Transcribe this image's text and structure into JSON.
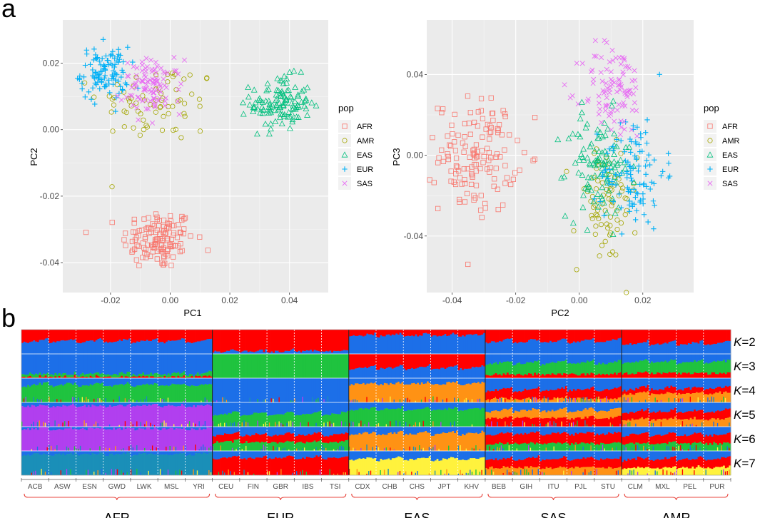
{
  "panel_labels": {
    "a": "a",
    "b": "b"
  },
  "chart_data": [
    {
      "type": "scatter",
      "xlabel": "PC1",
      "ylabel": "PC2",
      "xlim": [
        -0.036,
        0.053
      ],
      "ylim": [
        -0.049,
        0.033
      ],
      "xticks": [
        -0.02,
        0.0,
        0.02,
        0.04
      ],
      "xtick_labels": [
        "-0.02",
        "0.00",
        "0.02",
        "0.04"
      ],
      "yticks": [
        -0.04,
        -0.02,
        0.0,
        0.02
      ],
      "ytick_labels": [
        "-0.04",
        "-0.02",
        "0.00",
        "0.02"
      ],
      "grid": true,
      "legend": {
        "title": "pop",
        "placement": "right"
      },
      "series": [
        {
          "name": "AFR",
          "color": "#F8766D",
          "marker": "square",
          "n": 130,
          "center": [
            -0.004,
            -0.033
          ],
          "spread": [
            0.006,
            0.0045
          ]
        },
        {
          "name": "AMR",
          "color": "#A3A500",
          "marker": "circle",
          "n": 70,
          "center": [
            -0.004,
            0.008
          ],
          "spread": [
            0.01,
            0.006
          ]
        },
        {
          "name": "EAS",
          "color": "#00BF7D",
          "marker": "triangle",
          "n": 120,
          "center": [
            0.037,
            0.008
          ],
          "spread": [
            0.005,
            0.004
          ]
        },
        {
          "name": "EUR",
          "color": "#00B0F6",
          "marker": "plus",
          "n": 110,
          "center": [
            -0.022,
            0.017
          ],
          "spread": [
            0.004,
            0.004
          ]
        },
        {
          "name": "SAS",
          "color": "#E76BF3",
          "marker": "cross",
          "n": 100,
          "center": [
            -0.006,
            0.013
          ],
          "spread": [
            0.005,
            0.004
          ]
        }
      ]
    },
    {
      "type": "scatter",
      "xlabel": "PC2",
      "ylabel": "PC3",
      "xlim": [
        -0.048,
        0.036
      ],
      "ylim": [
        -0.068,
        0.067
      ],
      "xticks": [
        -0.04,
        -0.02,
        0.0,
        0.02
      ],
      "xtick_labels": [
        "-0.04",
        "-0.02",
        "0.00",
        "0.02"
      ],
      "yticks": [
        -0.04,
        0.0,
        0.04
      ],
      "ytick_labels": [
        "-0.04",
        "0.00",
        "0.04"
      ],
      "grid": true,
      "legend": {
        "title": "pop",
        "placement": "right"
      },
      "series": [
        {
          "name": "AFR",
          "color": "#F8766D",
          "marker": "square",
          "n": 140,
          "center": [
            -0.032,
            0.0
          ],
          "spread": [
            0.006,
            0.014
          ]
        },
        {
          "name": "AMR",
          "color": "#A3A500",
          "marker": "circle",
          "n": 80,
          "center": [
            0.008,
            -0.025
          ],
          "spread": [
            0.005,
            0.015
          ]
        },
        {
          "name": "EAS",
          "color": "#00BF7D",
          "marker": "triangle",
          "n": 110,
          "center": [
            0.006,
            -0.005
          ],
          "spread": [
            0.005,
            0.013
          ]
        },
        {
          "name": "EUR",
          "color": "#00B0F6",
          "marker": "plus",
          "n": 110,
          "center": [
            0.017,
            -0.008
          ],
          "spread": [
            0.005,
            0.014
          ]
        },
        {
          "name": "SAS",
          "color": "#E76BF3",
          "marker": "cross",
          "n": 100,
          "center": [
            0.011,
            0.032
          ],
          "spread": [
            0.005,
            0.012
          ]
        }
      ]
    },
    {
      "type": "admixture",
      "k_values": [
        "2",
        "3",
        "4",
        "5",
        "6",
        "7"
      ],
      "k_prefix": "K",
      "populations": [
        "ACB",
        "ASW",
        "ESN",
        "GWD",
        "LWK",
        "MSL",
        "YRI",
        "CEU",
        "FIN",
        "GBR",
        "IBS",
        "TSI",
        "CDX",
        "CHB",
        "CHS",
        "JPT",
        "KHV",
        "BEB",
        "GIH",
        "ITU",
        "PJL",
        "STU",
        "CLM",
        "MXL",
        "PEL",
        "PUR"
      ],
      "superpopulations": [
        {
          "name": "AFR",
          "count": 7
        },
        {
          "name": "EUR",
          "count": 5
        },
        {
          "name": "EAS",
          "count": 5
        },
        {
          "name": "SAS",
          "count": 5
        },
        {
          "name": "AMR",
          "count": 4
        }
      ],
      "component_colors": {
        "red": "#FF0000",
        "blue": "#1C6FE8",
        "green": "#1FC33F",
        "orange": "#FF9214",
        "purple": "#B13FEF",
        "teal": "#1A8FB8",
        "yellow": "#FFF23D"
      }
    }
  ]
}
